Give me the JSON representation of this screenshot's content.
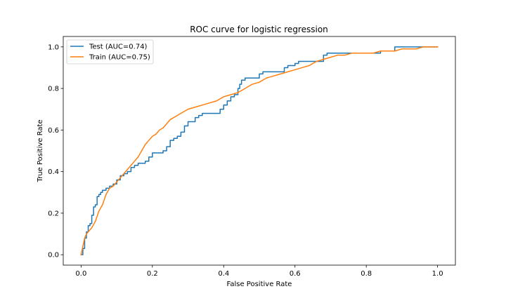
{
  "chart_data": {
    "type": "line",
    "title": "ROC curve for logistic regression",
    "xlabel": "False Positive Rate",
    "ylabel": "True Positive Rate",
    "xlim": [
      -0.05,
      1.05
    ],
    "ylim": [
      -0.05,
      1.05
    ],
    "xticks": [
      0.0,
      0.2,
      0.4,
      0.6,
      0.8,
      1.0
    ],
    "xtick_labels": [
      "0.0",
      "0.2",
      "0.4",
      "0.6",
      "0.8",
      "1.0"
    ],
    "yticks": [
      0.0,
      0.2,
      0.4,
      0.6,
      0.8,
      1.0
    ],
    "ytick_labels": [
      "0.0",
      "0.2",
      "0.4",
      "0.6",
      "0.8",
      "1.0"
    ],
    "grid": false,
    "legend": "upper-left",
    "series": [
      {
        "name": "Test (AUC=0.74)",
        "color": "#1f77b4",
        "step": true,
        "x": [
          0.0,
          0.005,
          0.01,
          0.015,
          0.02,
          0.025,
          0.03,
          0.035,
          0.04,
          0.045,
          0.05,
          0.055,
          0.06,
          0.07,
          0.08,
          0.09,
          0.1,
          0.11,
          0.12,
          0.13,
          0.14,
          0.15,
          0.16,
          0.18,
          0.19,
          0.2,
          0.23,
          0.24,
          0.25,
          0.26,
          0.27,
          0.28,
          0.29,
          0.3,
          0.32,
          0.33,
          0.34,
          0.39,
          0.4,
          0.41,
          0.42,
          0.43,
          0.44,
          0.445,
          0.45,
          0.46,
          0.5,
          0.51,
          0.56,
          0.57,
          0.58,
          0.6,
          0.61,
          0.68,
          0.69,
          0.7,
          0.75,
          0.84,
          0.85,
          0.88,
          0.89,
          0.95,
          1.0
        ],
        "y": [
          0.0,
          0.03,
          0.08,
          0.11,
          0.14,
          0.15,
          0.19,
          0.23,
          0.24,
          0.28,
          0.29,
          0.3,
          0.31,
          0.32,
          0.33,
          0.34,
          0.36,
          0.38,
          0.39,
          0.4,
          0.42,
          0.43,
          0.44,
          0.45,
          0.47,
          0.49,
          0.5,
          0.52,
          0.55,
          0.56,
          0.57,
          0.59,
          0.62,
          0.64,
          0.66,
          0.67,
          0.68,
          0.7,
          0.72,
          0.74,
          0.76,
          0.77,
          0.8,
          0.82,
          0.84,
          0.85,
          0.87,
          0.88,
          0.88,
          0.9,
          0.91,
          0.92,
          0.93,
          0.96,
          0.97,
          0.97,
          0.97,
          0.98,
          0.98,
          1.0,
          1.0,
          1.0,
          1.0
        ]
      },
      {
        "name": "Train (AUC=0.75)",
        "color": "#ff7f0e",
        "step": false,
        "x": [
          0.0,
          0.005,
          0.01,
          0.015,
          0.02,
          0.03,
          0.04,
          0.05,
          0.06,
          0.07,
          0.08,
          0.09,
          0.1,
          0.11,
          0.12,
          0.13,
          0.14,
          0.15,
          0.16,
          0.17,
          0.18,
          0.19,
          0.2,
          0.21,
          0.22,
          0.23,
          0.24,
          0.25,
          0.26,
          0.27,
          0.28,
          0.3,
          0.32,
          0.34,
          0.36,
          0.38,
          0.4,
          0.42,
          0.44,
          0.46,
          0.48,
          0.5,
          0.52,
          0.54,
          0.56,
          0.58,
          0.6,
          0.62,
          0.64,
          0.66,
          0.68,
          0.7,
          0.72,
          0.74,
          0.76,
          0.78,
          0.8,
          0.82,
          0.84,
          0.86,
          0.88,
          0.9,
          0.92,
          0.94,
          0.96,
          0.98,
          1.0
        ],
        "y": [
          0.0,
          0.04,
          0.08,
          0.1,
          0.11,
          0.13,
          0.16,
          0.21,
          0.24,
          0.29,
          0.32,
          0.33,
          0.35,
          0.37,
          0.39,
          0.41,
          0.43,
          0.45,
          0.47,
          0.5,
          0.53,
          0.55,
          0.57,
          0.58,
          0.6,
          0.61,
          0.63,
          0.65,
          0.66,
          0.67,
          0.68,
          0.7,
          0.71,
          0.72,
          0.73,
          0.74,
          0.76,
          0.77,
          0.78,
          0.8,
          0.82,
          0.83,
          0.85,
          0.86,
          0.87,
          0.88,
          0.89,
          0.9,
          0.91,
          0.93,
          0.94,
          0.95,
          0.96,
          0.96,
          0.97,
          0.97,
          0.97,
          0.97,
          0.98,
          0.98,
          0.98,
          0.99,
          0.99,
          0.99,
          1.0,
          1.0,
          1.0
        ]
      }
    ]
  }
}
